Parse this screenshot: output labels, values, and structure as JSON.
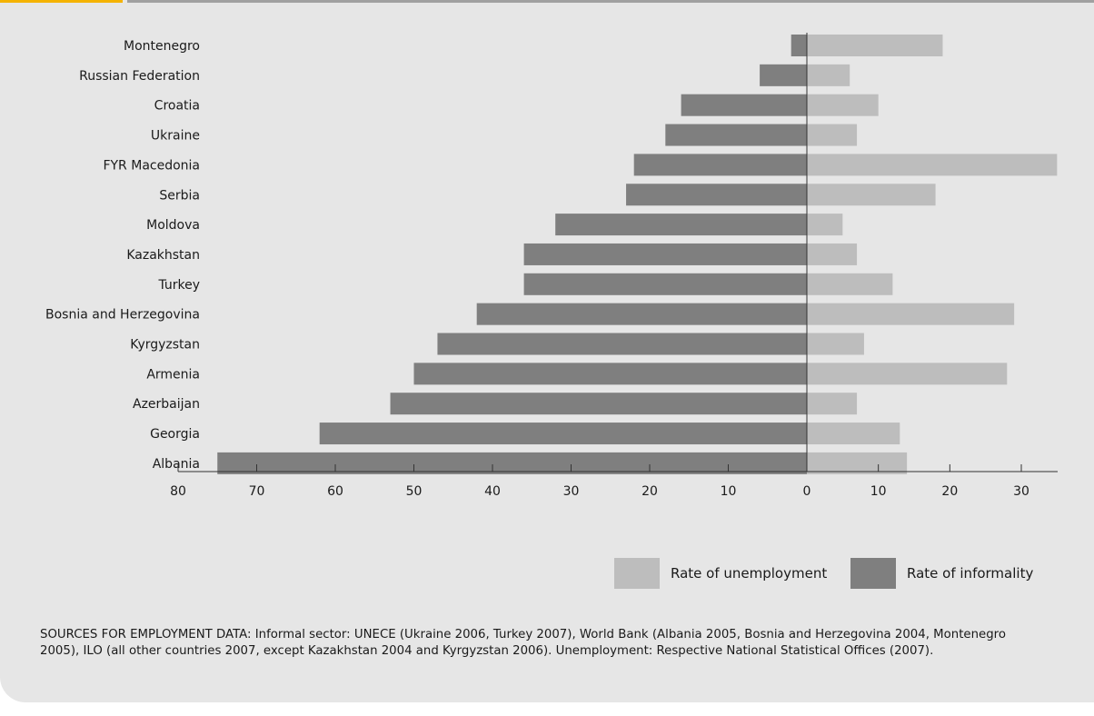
{
  "chart_data": {
    "type": "bar",
    "orientation": "horizontal-diverging",
    "title": "",
    "xlabel": "",
    "ylabel": "",
    "categories": [
      "Montenegro",
      "Russian Federation",
      "Croatia",
      "Ukraine",
      "FYR Macedonia",
      "Serbia",
      "Moldova",
      "Kazakhstan",
      "Turkey",
      "Bosnia and Herzegovina",
      "Kyrgyzstan",
      "Armenia",
      "Azerbaijan",
      "Georgia",
      "Albania"
    ],
    "series": [
      {
        "name": "Rate of informality",
        "side": "left",
        "color": "#7f7f7f",
        "values": [
          2,
          6,
          16,
          18,
          22,
          23,
          32,
          36,
          36,
          42,
          47,
          50,
          53,
          62,
          75
        ]
      },
      {
        "name": "Rate of unemployment",
        "side": "right",
        "color": "#bdbdbd",
        "values": [
          19,
          6,
          10,
          7,
          35,
          18,
          5,
          7,
          12,
          29,
          8,
          28,
          7,
          13,
          14
        ]
      }
    ],
    "left_ticks": [
      "80",
      "70",
      "60",
      "50",
      "40",
      "30",
      "20",
      "10"
    ],
    "center_tick": "0",
    "right_ticks": [
      "10",
      "20",
      "30"
    ],
    "xlim_left": [
      0,
      80
    ],
    "xlim_right": [
      0,
      35
    ],
    "legend": [
      {
        "label": "Rate of unemployment",
        "color": "#bdbdbd"
      },
      {
        "label": "Rate of informality",
        "color": "#7f7f7f"
      }
    ],
    "legend_position": "bottom-right",
    "grid": false
  },
  "source_text": "SOURCES FOR EMPLOYMENT DATA: Informal sector: UNECE (Ukraine 2006, Turkey 2007), World Bank (Albania 2005, Bosnia and Herzegovina 2004, Montenegro 2005), ILO (all other countries 2007, except Kazakhstan 2004 and Kyrgyzstan 2006). Unemployment: Respective National Statistical Offices (2007)."
}
